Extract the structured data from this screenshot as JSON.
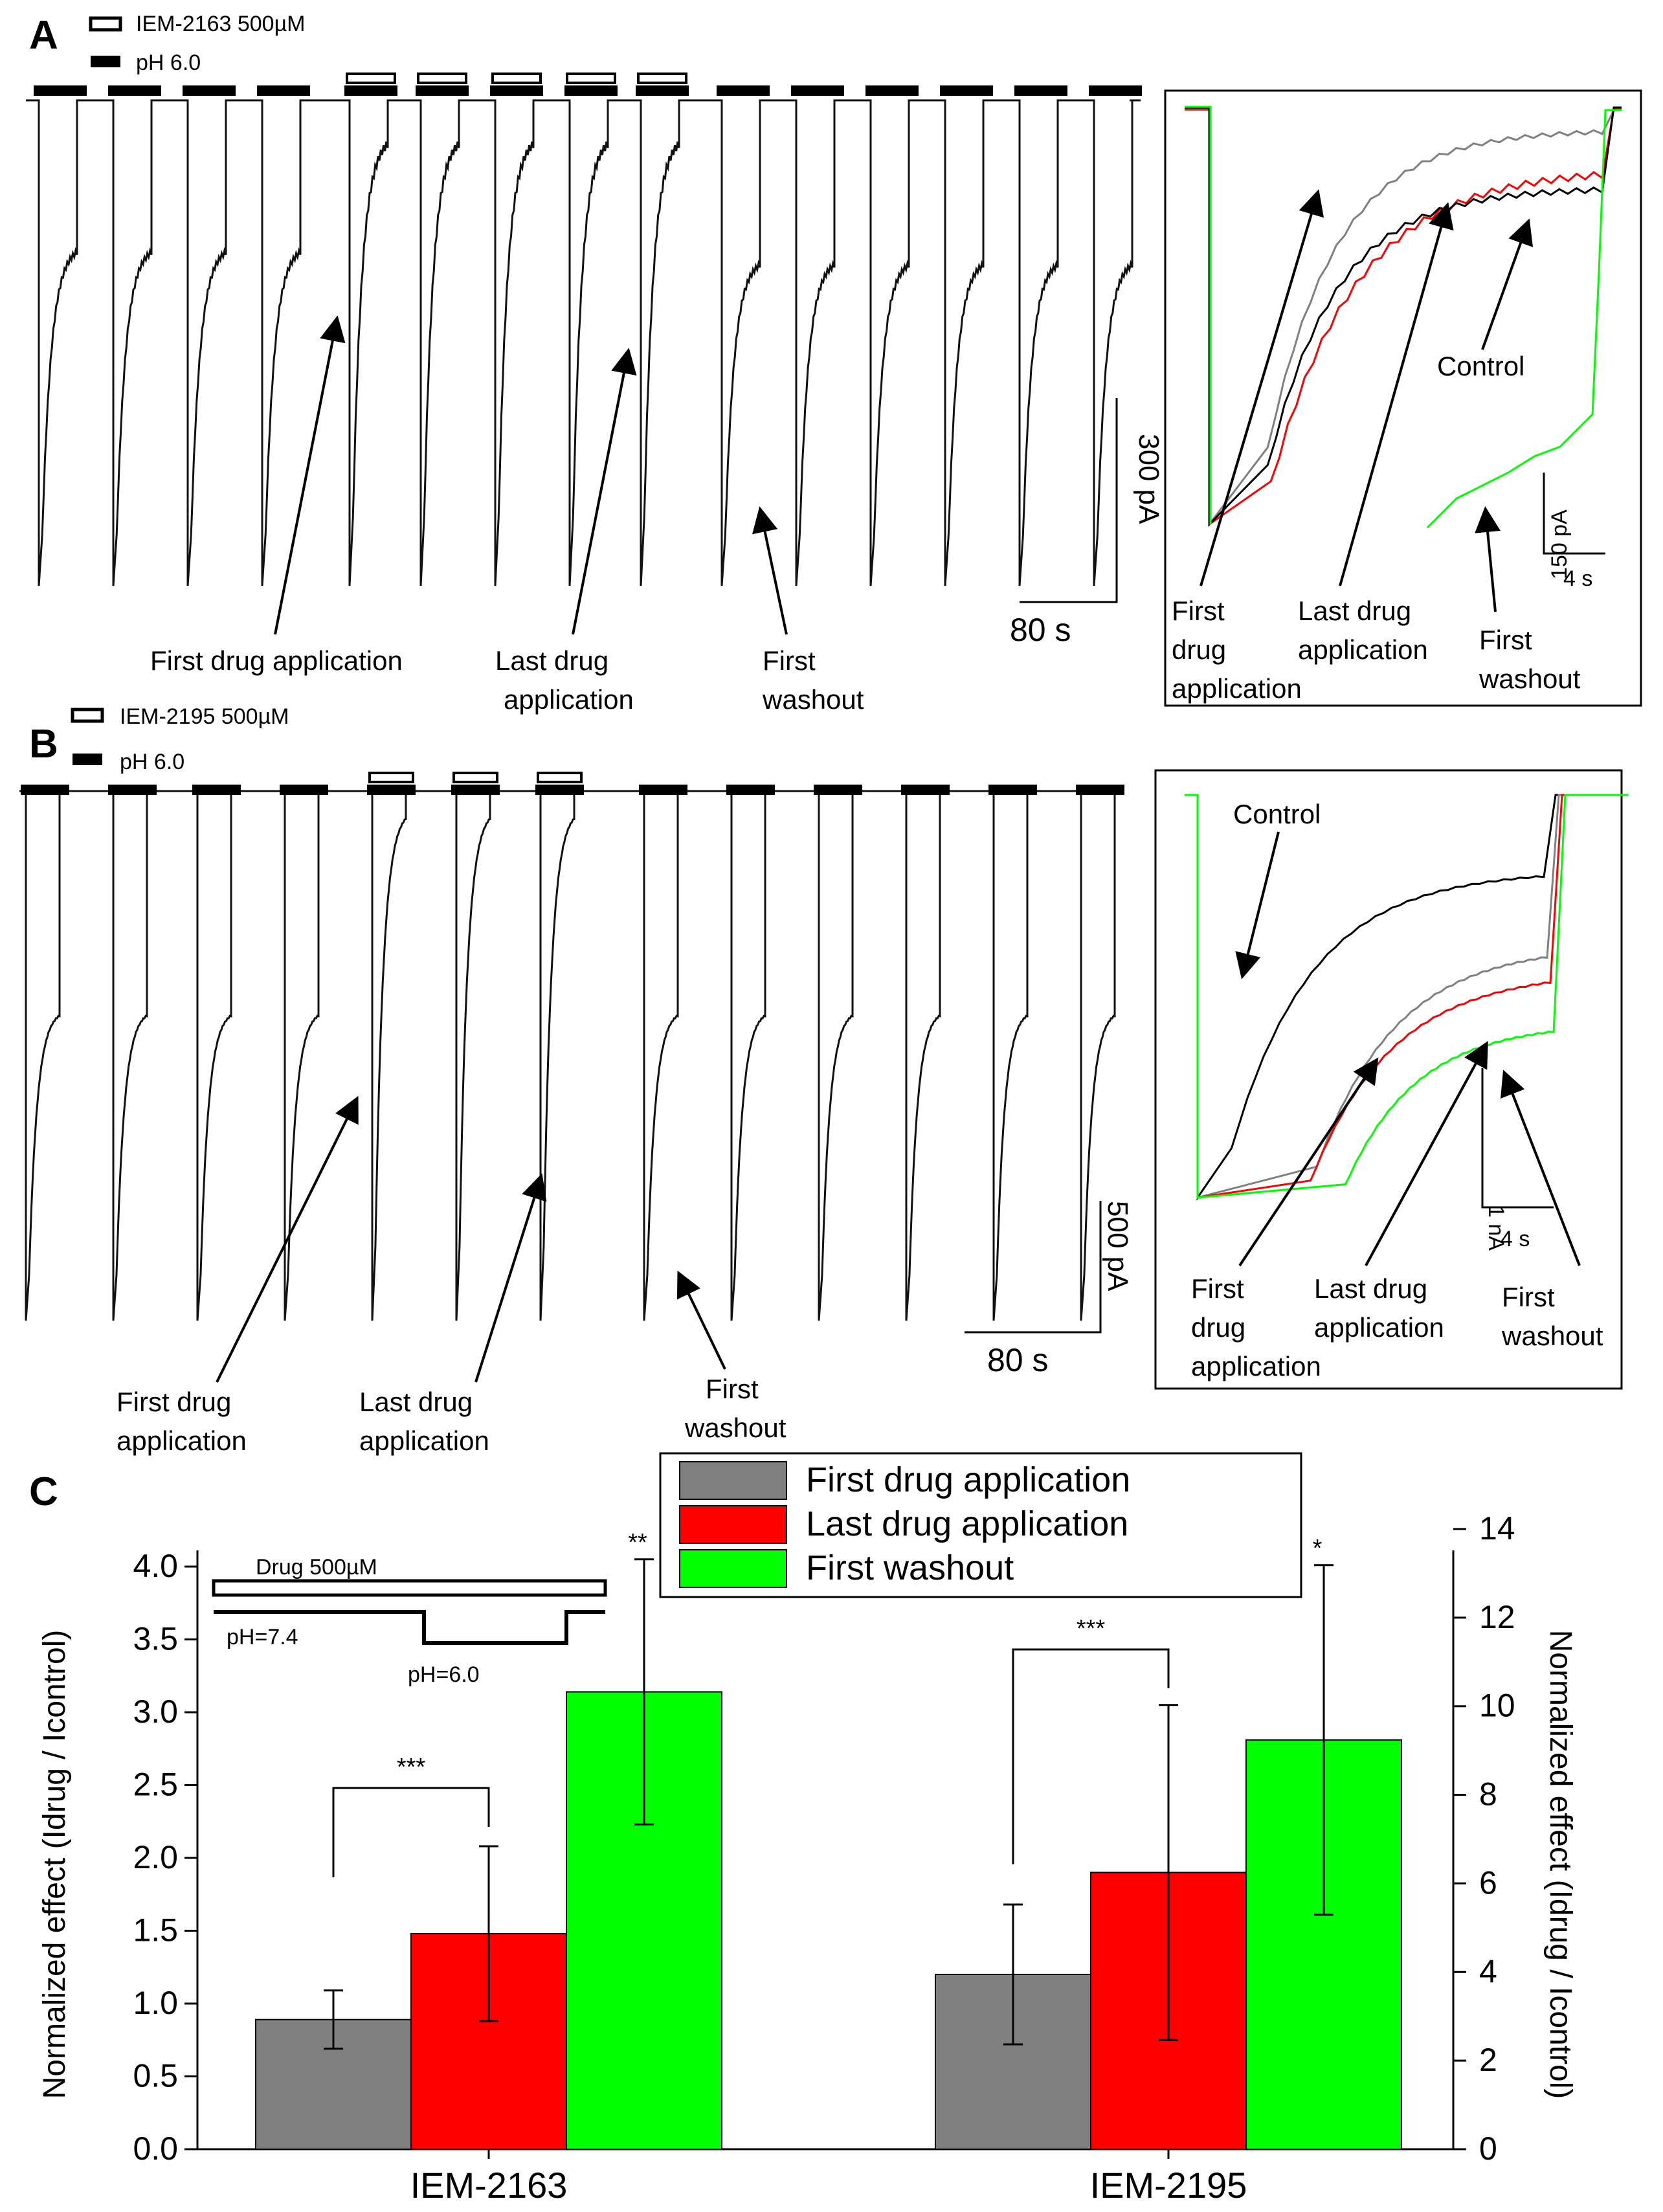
{
  "panelA": {
    "label": "A",
    "legend_drug": "IEM-2163 500µM",
    "legend_ph": "pH 6.0",
    "arrow_labels": {
      "first_drug": "First drug application",
      "last_drug_line1": "Last drug",
      "last_drug_line2": "application",
      "first_wash_line1": "First",
      "first_wash_line2": "washout"
    },
    "scale_current": "300 pA",
    "scale_time": "80 s",
    "inset": {
      "control": "Control",
      "first_drug": [
        "First",
        "drug",
        "application"
      ],
      "last_drug": [
        "Last drug",
        "application"
      ],
      "first_wash": [
        "First",
        "washout"
      ],
      "scale_current": "150 pA",
      "scale_time": "4 s"
    }
  },
  "panelB": {
    "label": "B",
    "legend_drug": "IEM-2195 500µM",
    "legend_ph": "pH 6.0",
    "arrow_labels": {
      "first_drug_line1": "First drug",
      "first_drug_line2": "application",
      "last_drug_line1": "Last drug",
      "last_drug_line2": "application",
      "first_wash_line1": "First",
      "first_wash_line2": "washout"
    },
    "scale_current": "500 pA",
    "scale_time": "80 s",
    "inset": {
      "control": "Control",
      "first_drug": [
        "First",
        "drug",
        "application"
      ],
      "last_drug": [
        "Last drug",
        "application"
      ],
      "first_wash": [
        "First",
        "washout"
      ],
      "scale_current": "1 nA",
      "scale_time": "4 s"
    }
  },
  "panelC": {
    "label": "C",
    "protocol": {
      "drug": "Drug 500µM",
      "ph_hi": "pH=7.4",
      "ph_lo": "pH=6.0"
    }
  },
  "colors": {
    "first": "#808080",
    "last": "#ff0000",
    "wash": "#00ff00",
    "control": "#000000"
  },
  "chart_data": {
    "type": "bar",
    "categories": [
      "IEM-2163",
      "IEM-2195"
    ],
    "series": [
      {
        "name": "First drug application",
        "color": "#808080",
        "values": [
          0.89,
          1.2
        ],
        "errors": [
          0.2,
          0.48
        ]
      },
      {
        "name": "Last drug application",
        "color": "#ff0000",
        "values": [
          1.48,
          1.9
        ],
        "errors": [
          0.6,
          1.15
        ]
      },
      {
        "name": "First washout",
        "color": "#00ff00",
        "values": [
          3.14,
          2.81
        ],
        "errors": [
          0.91,
          1.2
        ]
      }
    ],
    "significance": [
      {
        "group": "IEM-2163",
        "pair": [
          "First drug application",
          "Last drug application"
        ],
        "label": "***"
      },
      {
        "group": "IEM-2163",
        "series": "First washout",
        "label": "**"
      },
      {
        "group": "IEM-2195",
        "pair": [
          "First drug application",
          "Last drug application"
        ],
        "label": "***"
      },
      {
        "group": "IEM-2195",
        "series": "First washout",
        "label": "*"
      }
    ],
    "ylabel_left": "Normalized effect (Idrug / Icontrol)",
    "ylabel_right": "Normalized effect (Idrug / Icontrol)",
    "ylim_left": [
      0,
      4.0
    ],
    "yticks_left": [
      "0.0",
      "0.5",
      "1.0",
      "1.5",
      "2.0",
      "2.5",
      "3.0",
      "3.5",
      "4.0"
    ],
    "ylim_right": [
      0,
      14
    ],
    "yticks_right": [
      "0",
      "2",
      "4",
      "6",
      "8",
      "10",
      "12",
      "14"
    ],
    "legend_position": "top-center"
  }
}
